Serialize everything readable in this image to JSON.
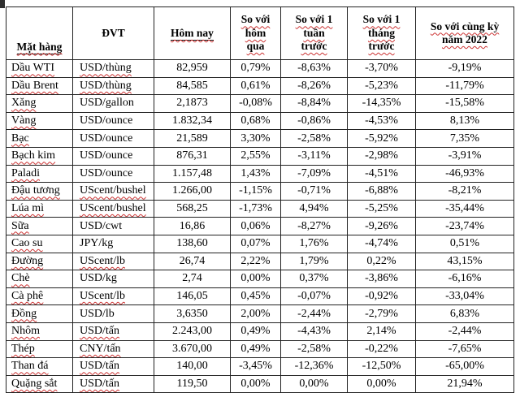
{
  "table": {
    "headers": [
      "Mặt hàng",
      "ĐVT",
      "Hôm nay",
      "So với\nhôm\nqua",
      "So với 1\ntuần\ntrước",
      "So với 1\ntháng\ntrước",
      "So với cùng kỳ\nnăm 2022"
    ],
    "value_columns": [
      "price-today",
      "vs-yesterday",
      "vs-1-week",
      "vs-1-month",
      "vs-2022"
    ],
    "rows": [
      {
        "name": "Dầu WTI",
        "unit": "USD/thùng",
        "unit_spellcheck": true,
        "values": [
          "82,959",
          "0,79%",
          "-8,63%",
          "-3,70%",
          "-9,19%"
        ]
      },
      {
        "name": "Dầu Brent",
        "unit": "USD/thùng",
        "unit_spellcheck": true,
        "values": [
          "84,585",
          "0,61%",
          "-8,26%",
          "-5,23%",
          "-11,79%"
        ]
      },
      {
        "name": "Xăng",
        "unit": "USD/gallon",
        "unit_spellcheck": false,
        "values": [
          "2,1873",
          "-0,08%",
          "-8,84%",
          "-14,35%",
          "-15,58%"
        ]
      },
      {
        "name": "Vàng",
        "unit": "USD/ounce",
        "unit_spellcheck": false,
        "values": [
          "1.832,34",
          "0,68%",
          "-0,86%",
          "-4,53%",
          "8,13%"
        ]
      },
      {
        "name": "Bạc",
        "unit": "USD/ounce",
        "unit_spellcheck": false,
        "values": [
          "21,589",
          "3,30%",
          "-2,58%",
          "-5,92%",
          "7,35%"
        ]
      },
      {
        "name": "Bạch kim",
        "unit": "USD/ounce",
        "unit_spellcheck": false,
        "values": [
          "876,31",
          "2,55%",
          "-3,11%",
          "-2,98%",
          "-3,91%"
        ]
      },
      {
        "name": "Paladi",
        "unit": "USD/ounce",
        "unit_spellcheck": false,
        "values": [
          "1.157,48",
          "1,43%",
          "-7,09%",
          "-4,51%",
          "-46,93%"
        ]
      },
      {
        "name": "Đậu tương",
        "unit": "UScent/bushel",
        "unit_spellcheck": true,
        "values": [
          "1.266,00",
          "-1,15%",
          "-0,71%",
          "-6,88%",
          "-8,21%"
        ]
      },
      {
        "name": "Lúa mì",
        "unit": "UScent/bushel",
        "unit_spellcheck": true,
        "values": [
          "568,25",
          "-1,73%",
          "4,94%",
          "-5,25%",
          "-35,44%"
        ]
      },
      {
        "name": "Sữa",
        "unit": "USD/cwt",
        "unit_spellcheck": false,
        "values": [
          "16,86",
          "0,06%",
          "-8,27%",
          "-9,26%",
          "-23,74%"
        ]
      },
      {
        "name": "Cao su",
        "unit": "JPY/kg",
        "unit_spellcheck": false,
        "values": [
          "138,60",
          "0,07%",
          "1,76%",
          "-4,74%",
          "0,51%"
        ]
      },
      {
        "name": "Đường",
        "unit": "UScent/lb",
        "unit_spellcheck": true,
        "values": [
          "26,74",
          "2,22%",
          "1,79%",
          "0,22%",
          "43,15%"
        ]
      },
      {
        "name": "Chè",
        "unit": "USD/kg",
        "unit_spellcheck": false,
        "values": [
          "2,74",
          "0,00%",
          "0,37%",
          "-3,86%",
          "-6,16%"
        ]
      },
      {
        "name": "Cà phê",
        "unit": "UScent/lb",
        "unit_spellcheck": true,
        "values": [
          "146,05",
          "0,45%",
          "-0,07%",
          "-0,92%",
          "-33,04%"
        ]
      },
      {
        "name": "Đồng",
        "unit": "USD/lb",
        "unit_spellcheck": false,
        "values": [
          "3,6350",
          "2,00%",
          "-2,44%",
          "-2,79%",
          "6,83%"
        ]
      },
      {
        "name": "Nhôm",
        "unit": "USD/tấn",
        "unit_spellcheck": true,
        "values": [
          "2.243,00",
          "0,49%",
          "-4,43%",
          "2,14%",
          "-2,44%"
        ]
      },
      {
        "name": "Thép",
        "unit": "CNY/tấn",
        "unit_spellcheck": true,
        "values": [
          "3.670,00",
          "0,49%",
          "-2,58%",
          "-0,22%",
          "-7,65%"
        ]
      },
      {
        "name": "Than đá",
        "unit": "USD/tấn",
        "unit_spellcheck": true,
        "values": [
          "140,00",
          "-3,45%",
          "-12,36%",
          "-12,50%",
          "-65,00%"
        ]
      },
      {
        "name": "Quặng sắt",
        "unit": "USD/tấn",
        "unit_spellcheck": true,
        "values": [
          "119,50",
          "0,00%",
          "0,00%",
          "0,00%",
          "21,94%"
        ]
      }
    ],
    "colors": {
      "text": "#000000",
      "border": "#222222",
      "spellcheck_underline": "#cc3333",
      "background": "#ffffff"
    }
  }
}
